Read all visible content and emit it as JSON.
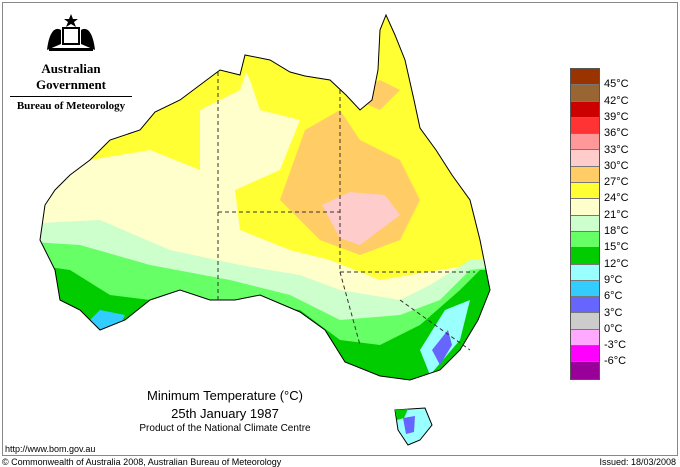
{
  "header": {
    "government": "Australian Government",
    "bureau": "Bureau of Meteorology"
  },
  "title": {
    "line1": "Minimum Temperature (°C)",
    "line2": "25th January 1987",
    "line3": "Product of the National Climate Centre"
  },
  "legend": {
    "colors": [
      "#993300",
      "#996633",
      "#cc0000",
      "#ff3333",
      "#ff9999",
      "#ffcccc",
      "#ffcc66",
      "#ffff33",
      "#ffffcc",
      "#ccffcc",
      "#66ff66",
      "#00cc00",
      "#99ffff",
      "#33ccff",
      "#6666ff",
      "#cccccc",
      "#ffaaff",
      "#ff00ff",
      "#990099"
    ],
    "labels": [
      "45°C",
      "42°C",
      "39°C",
      "36°C",
      "33°C",
      "30°C",
      "27°C",
      "24°C",
      "21°C",
      "18°C",
      "15°C",
      "12°C",
      "9°C",
      "6°C",
      "3°C",
      "0°C",
      "-3°C",
      "-6°C"
    ]
  },
  "footer": {
    "url": "http://www.bom.gov.au",
    "copyright": "© Commonwealth of Australia 2008, Australian Bureau of Meteorology",
    "issued": "Issued: 18/03/2008"
  }
}
